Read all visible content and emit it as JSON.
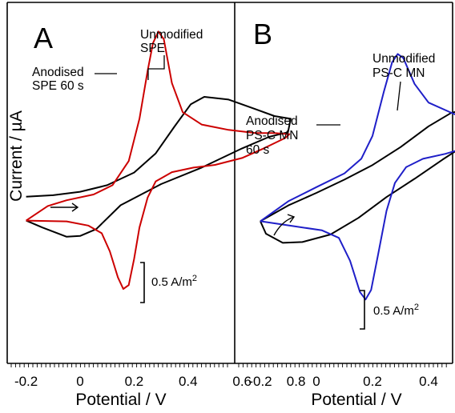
{
  "chart_data": [
    {
      "type": "line",
      "panel": "A",
      "xlabel": "Potential / V",
      "ylabel": "Current / µA",
      "x_ticks": [
        "-0.2",
        "0",
        "0.2",
        "0.4",
        "0.6",
        "0.8"
      ],
      "xlim": [
        -0.25,
        0.82
      ],
      "scale_bar": {
        "value": 0.5,
        "unit": "A/m",
        "sup": "2"
      },
      "series": [
        {
          "name": "Unmodified SPE",
          "color": "#000000",
          "points": [
            [
              -0.2,
              0.42
            ],
            [
              -0.1,
              0.46
            ],
            [
              0.0,
              0.55
            ],
            [
              0.1,
              0.72
            ],
            [
              0.2,
              1.05
            ],
            [
              0.28,
              1.55
            ],
            [
              0.35,
              2.25
            ],
            [
              0.41,
              2.83
            ],
            [
              0.46,
              3.02
            ],
            [
              0.55,
              2.95
            ],
            [
              0.65,
              2.7
            ],
            [
              0.72,
              2.52
            ],
            [
              0.78,
              2.45
            ],
            [
              0.77,
              2.1
            ],
            [
              0.7,
              1.98
            ],
            [
              0.6,
              1.68
            ],
            [
              0.45,
              1.18
            ],
            [
              0.3,
              0.75
            ],
            [
              0.15,
              0.2
            ],
            [
              0.06,
              -0.42
            ],
            [
              0.0,
              -0.6
            ],
            [
              -0.05,
              -0.62
            ],
            [
              -0.14,
              -0.38
            ],
            [
              -0.2,
              -0.2
            ]
          ]
        },
        {
          "name": "Anodised SPE 60 s",
          "color": "#cc0000",
          "points": [
            [
              -0.2,
              -0.2
            ],
            [
              -0.12,
              0.18
            ],
            [
              -0.05,
              0.33
            ],
            [
              0.05,
              0.48
            ],
            [
              0.12,
              0.72
            ],
            [
              0.18,
              1.35
            ],
            [
              0.22,
              2.45
            ],
            [
              0.25,
              3.7
            ],
            [
              0.27,
              4.42
            ],
            [
              0.29,
              4.72
            ],
            [
              0.31,
              4.52
            ],
            [
              0.34,
              3.38
            ],
            [
              0.38,
              2.62
            ],
            [
              0.45,
              2.3
            ],
            [
              0.55,
              2.16
            ],
            [
              0.65,
              2.08
            ],
            [
              0.72,
              2.08
            ],
            [
              0.775,
              2.05
            ],
            [
              0.76,
              1.95
            ],
            [
              0.68,
              1.68
            ],
            [
              0.6,
              1.43
            ],
            [
              0.5,
              1.25
            ],
            [
              0.42,
              1.18
            ],
            [
              0.34,
              1.06
            ],
            [
              0.28,
              0.82
            ],
            [
              0.25,
              0.4
            ],
            [
              0.22,
              -0.38
            ],
            [
              0.2,
              -1.2
            ],
            [
              0.18,
              -1.88
            ],
            [
              0.16,
              -1.98
            ],
            [
              0.14,
              -1.68
            ],
            [
              0.11,
              -1.0
            ],
            [
              0.08,
              -0.53
            ],
            [
              0.03,
              -0.33
            ],
            [
              -0.05,
              -0.22
            ],
            [
              -0.2,
              -0.2
            ]
          ]
        }
      ],
      "annotations": [
        {
          "lines": [
            "Unmodified",
            "SPE"
          ]
        },
        {
          "lines": [
            "Anodised",
            "SPE 60 s"
          ]
        }
      ]
    },
    {
      "type": "line",
      "panel": "B",
      "xlabel": "Potential / V",
      "ylabel": "",
      "x_ticks": [
        "-0.2",
        "0",
        "0.2",
        "0.4",
        "0.6",
        "0.8"
      ],
      "xlim": [
        -0.25,
        0.82
      ],
      "scale_bar": {
        "value": 0.5,
        "unit": "A/m",
        "sup": "2"
      },
      "series": [
        {
          "name": "Unmodified PS-C MN",
          "color": "#000000",
          "points": [
            [
              -0.2,
              -0.2
            ],
            [
              -0.1,
              0.18
            ],
            [
              0.0,
              0.48
            ],
            [
              0.1,
              0.8
            ],
            [
              0.2,
              1.15
            ],
            [
              0.3,
              1.58
            ],
            [
              0.4,
              2.08
            ],
            [
              0.48,
              2.4
            ],
            [
              0.55,
              2.52
            ],
            [
              0.62,
              2.5
            ],
            [
              0.7,
              2.42
            ],
            [
              0.75,
              2.38
            ],
            [
              0.73,
              2.25
            ],
            [
              0.65,
              2.05
            ],
            [
              0.55,
              1.72
            ],
            [
              0.45,
              1.28
            ],
            [
              0.35,
              0.82
            ],
            [
              0.25,
              0.38
            ],
            [
              0.15,
              -0.12
            ],
            [
              0.05,
              -0.52
            ],
            [
              -0.05,
              -0.7
            ],
            [
              -0.12,
              -0.72
            ],
            [
              -0.18,
              -0.5
            ],
            [
              -0.2,
              -0.2
            ]
          ]
        },
        {
          "name": "Anodised PS-C MN 60 s",
          "color": "#1f1fc8",
          "points": [
            [
              -0.2,
              -0.2
            ],
            [
              -0.1,
              0.28
            ],
            [
              0.0,
              0.62
            ],
            [
              0.1,
              0.95
            ],
            [
              0.16,
              1.3
            ],
            [
              0.2,
              1.85
            ],
            [
              0.24,
              2.9
            ],
            [
              0.27,
              3.62
            ],
            [
              0.29,
              3.82
            ],
            [
              0.31,
              3.72
            ],
            [
              0.35,
              3.1
            ],
            [
              0.4,
              2.65
            ],
            [
              0.5,
              2.35
            ],
            [
              0.6,
              2.28
            ],
            [
              0.7,
              2.26
            ],
            [
              0.76,
              2.22
            ],
            [
              0.74,
              2.05
            ],
            [
              0.66,
              1.85
            ],
            [
              0.56,
              1.62
            ],
            [
              0.46,
              1.42
            ],
            [
              0.38,
              1.3
            ],
            [
              0.32,
              1.1
            ],
            [
              0.28,
              0.72
            ],
            [
              0.25,
              0.05
            ],
            [
              0.22,
              -1.0
            ],
            [
              0.195,
              -1.85
            ],
            [
              0.175,
              -2.08
            ],
            [
              0.155,
              -1.9
            ],
            [
              0.12,
              -1.15
            ],
            [
              0.08,
              -0.6
            ],
            [
              0.02,
              -0.42
            ],
            [
              -0.08,
              -0.32
            ],
            [
              -0.2,
              -0.2
            ]
          ]
        }
      ],
      "annotations": [
        {
          "lines": [
            "Unmodified",
            "PS-C MN"
          ]
        },
        {
          "lines": [
            "Anodised",
            "PS-C MN",
            "60 s"
          ]
        }
      ]
    }
  ]
}
